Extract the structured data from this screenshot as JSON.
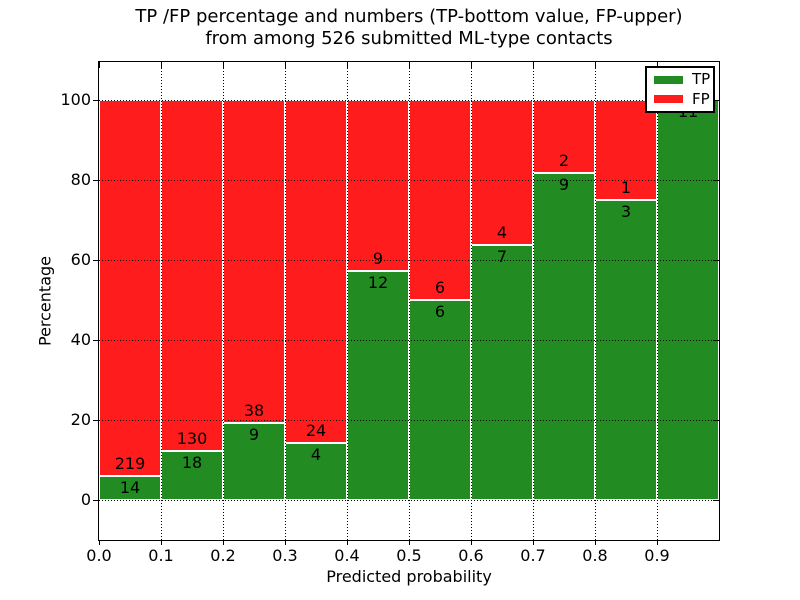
{
  "chart_data": {
    "type": "bar",
    "variant": "stacked-100-percent-histogram",
    "title_line1": "TP /FP percentage and numbers (TP-bottom value, FP-upper)",
    "title_line2": "from among 526 submitted ML-type contacts",
    "xlabel": "Predicted probability",
    "ylabel": "Percentage",
    "x_tick_labels": [
      "0.0",
      "0.1",
      "0.2",
      "0.3",
      "0.4",
      "0.5",
      "0.6",
      "0.7",
      "0.8",
      "0.9"
    ],
    "y_tick_labels": [
      "0",
      "20",
      "40",
      "60",
      "80",
      "100"
    ],
    "xlim": [
      0.0,
      1.0
    ],
    "ylim": [
      -10,
      110
    ],
    "bin_width": 0.1,
    "grid_style": "dotted",
    "total_contacts": 526,
    "legend": {
      "position": "upper right",
      "entries": [
        {
          "label": "TP",
          "color": "#228B22"
        },
        {
          "label": "FP",
          "color": "#FF1C1C"
        }
      ]
    },
    "bins": [
      {
        "range": "0.0-0.1",
        "tp": 14,
        "fp": 219
      },
      {
        "range": "0.1-0.2",
        "tp": 18,
        "fp": 130
      },
      {
        "range": "0.2-0.3",
        "tp": 9,
        "fp": 38
      },
      {
        "range": "0.3-0.4",
        "tp": 4,
        "fp": 24
      },
      {
        "range": "0.4-0.5",
        "tp": 12,
        "fp": 9
      },
      {
        "range": "0.5-0.6",
        "tp": 6,
        "fp": 6
      },
      {
        "range": "0.6-0.7",
        "tp": 7,
        "fp": 4
      },
      {
        "range": "0.7-0.8",
        "tp": 9,
        "fp": 2
      },
      {
        "range": "0.8-0.9",
        "tp": 3,
        "fp": 1
      },
      {
        "range": "0.9-1.0",
        "tp": 11,
        "fp": 0
      }
    ],
    "note": "green bottom segment height = tp/(tp+fp)*100; red stacked to 100%; FP count printed above boundary, TP count below"
  }
}
